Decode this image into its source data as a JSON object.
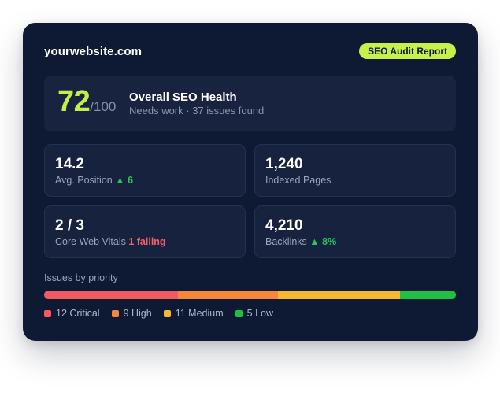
{
  "header": {
    "site": "yourwebsite.com",
    "badge": "SEO Audit Report"
  },
  "health": {
    "score": "72",
    "max": "/100",
    "title": "Overall SEO Health",
    "subtitle": "Needs work · 37 issues found"
  },
  "stats": [
    {
      "value": "14.2",
      "label": "Avg. Position",
      "delta": "▲ 6"
    },
    {
      "value": "1,240",
      "label": "Indexed Pages"
    },
    {
      "value": "2 / 3",
      "label": "Core Web Vitals",
      "status": "1 failing"
    },
    {
      "value": "4,210",
      "label": "Backlinks",
      "delta": "▲ 8%"
    }
  ],
  "issues": {
    "title": "Issues by priority",
    "segments": [
      {
        "label": "12 Critical",
        "count": 12,
        "color": "#f25a5f"
      },
      {
        "label": "9 High",
        "count": 9,
        "color": "#f5873d"
      },
      {
        "label": "11 Medium",
        "count": 11,
        "color": "#f5b82e"
      },
      {
        "label": "5 Low",
        "count": 5,
        "color": "#22bf47"
      }
    ]
  }
}
